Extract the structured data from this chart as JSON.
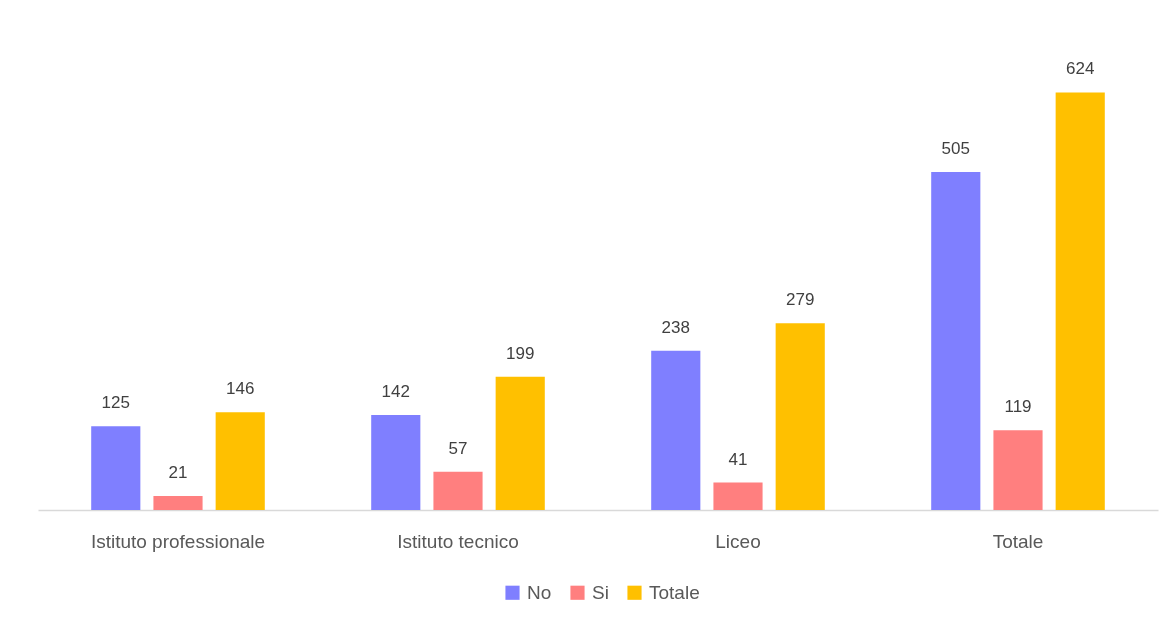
{
  "chart_data": {
    "type": "bar",
    "categories": [
      "Istituto professionale",
      "Istituto tecnico",
      "Liceo",
      "Totale"
    ],
    "series": [
      {
        "name": "No",
        "color": "#7f7fff",
        "values": [
          125,
          142,
          238,
          505
        ]
      },
      {
        "name": "Si",
        "color": "#ff7f7f",
        "values": [
          21,
          57,
          41,
          119
        ]
      },
      {
        "name": "Totale",
        "color": "#ffc000",
        "values": [
          146,
          199,
          279,
          624
        ]
      }
    ],
    "data_labels": true,
    "legend": "bottom",
    "tick_labels": "x"
  }
}
